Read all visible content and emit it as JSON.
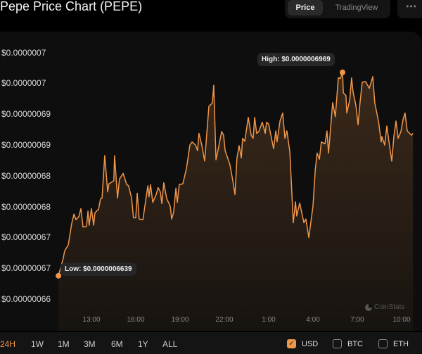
{
  "header": {
    "title": "Pepe Price Chart (PEPE)",
    "tabs": [
      {
        "label": "Price",
        "active": true
      },
      {
        "label": "TradingView",
        "active": false
      }
    ],
    "more_label": "•••"
  },
  "colors": {
    "line": "#f0964a",
    "background": "#0e0e0e",
    "accent": "#f0964a"
  },
  "chart_data": {
    "type": "area",
    "title": "",
    "xlabel": "",
    "ylabel": "",
    "ylim": [
      6.6e-07,
      7e-07
    ],
    "grid": false,
    "y_ticks": [
      {
        "value": 7e-07,
        "label": "$0.0000007"
      },
      {
        "value": 6.95e-07,
        "label": "$0.0000007"
      },
      {
        "value": 6.9e-07,
        "label": "$0.00000069"
      },
      {
        "value": 6.85e-07,
        "label": "$0.00000069"
      },
      {
        "value": 6.8e-07,
        "label": "$0.00000068"
      },
      {
        "value": 6.75e-07,
        "label": "$0.00000068"
      },
      {
        "value": 6.7e-07,
        "label": "$0.00000067"
      },
      {
        "value": 6.65e-07,
        "label": "$0.00000067"
      },
      {
        "value": 6.6e-07,
        "label": "$0.00000066"
      }
    ],
    "x_ticks": [
      "13:00",
      "16:00",
      "19:00",
      "22:00",
      "1:00",
      "4:00",
      "7:00",
      "10:00"
    ],
    "annotations": {
      "high": {
        "label": "High: $0.0000006969",
        "time": "06:00",
        "value": 6.969e-07
      },
      "low": {
        "label": "Low: $0.0000006639",
        "time": "10:46",
        "value": 6.639e-07
      }
    },
    "points": [
      [
        "10:46",
        6.639e-07
      ],
      [
        "11:06",
        6.668e-07
      ],
      [
        "11:11",
        6.679e-07
      ],
      [
        "11:26",
        6.689e-07
      ],
      [
        "11:40",
        6.724e-07
      ],
      [
        "11:49",
        6.739e-07
      ],
      [
        "11:57",
        6.73e-07
      ],
      [
        "12:09",
        6.735e-07
      ],
      [
        "12:17",
        6.748e-07
      ],
      [
        "12:26",
        6.718e-07
      ],
      [
        "12:40",
        6.719e-07
      ],
      [
        "12:46",
        6.744e-07
      ],
      [
        "12:51",
        6.721e-07
      ],
      [
        "13:00",
        6.748e-07
      ],
      [
        "13:09",
        6.721e-07
      ],
      [
        "13:14",
        6.741e-07
      ],
      [
        "13:29",
        6.747e-07
      ],
      [
        "13:37",
        6.764e-07
      ],
      [
        "13:43",
        6.765e-07
      ],
      [
        "13:54",
        6.834e-07
      ],
      [
        "14:06",
        6.775e-07
      ],
      [
        "14:11",
        6.788e-07
      ],
      [
        "14:31",
        6.793e-07
      ],
      [
        "14:34",
        6.834e-07
      ],
      [
        "14:46",
        6.765e-07
      ],
      [
        "14:54",
        6.796e-07
      ],
      [
        "15:09",
        6.805e-07
      ],
      [
        "15:23",
        6.787e-07
      ],
      [
        "15:31",
        6.785e-07
      ],
      [
        "15:43",
        6.765e-07
      ],
      [
        "15:51",
        6.733e-07
      ],
      [
        "16:00",
        6.733e-07
      ],
      [
        "16:06",
        6.773e-07
      ],
      [
        "16:14",
        6.731e-07
      ],
      [
        "16:29",
        6.73e-07
      ],
      [
        "16:49",
        6.785e-07
      ],
      [
        "16:54",
        6.767e-07
      ],
      [
        "17:00",
        6.787e-07
      ],
      [
        "17:09",
        6.758e-07
      ],
      [
        "17:23",
        6.771e-07
      ],
      [
        "17:31",
        6.782e-07
      ],
      [
        "17:40",
        6.775e-07
      ],
      [
        "17:46",
        6.756e-07
      ],
      [
        "17:54",
        6.79e-07
      ],
      [
        "18:06",
        6.764e-07
      ],
      [
        "18:20",
        6.752e-07
      ],
      [
        "18:26",
        6.731e-07
      ],
      [
        "18:34",
        6.742e-07
      ],
      [
        "18:43",
        6.781e-07
      ],
      [
        "18:49",
        6.758e-07
      ],
      [
        "18:57",
        6.787e-07
      ],
      [
        "19:11",
        6.788e-07
      ],
      [
        "19:26",
        6.813e-07
      ],
      [
        "19:40",
        6.851e-07
      ],
      [
        "19:49",
        6.856e-07
      ],
      [
        "20:03",
        6.851e-07
      ],
      [
        "20:11",
        6.842e-07
      ],
      [
        "20:17",
        6.87e-07
      ],
      [
        "20:29",
        6.85e-07
      ],
      [
        "20:40",
        6.825e-07
      ],
      [
        "20:46",
        6.856e-07
      ],
      [
        "20:57",
        6.914e-07
      ],
      [
        "21:11",
        6.919e-07
      ],
      [
        "21:17",
        6.948e-07
      ],
      [
        "21:26",
        6.827e-07
      ],
      [
        "21:34",
        6.842e-07
      ],
      [
        "21:49",
        6.873e-07
      ],
      [
        "21:57",
        6.867e-07
      ],
      [
        "22:03",
        6.842e-07
      ],
      [
        "22:23",
        6.819e-07
      ],
      [
        "22:34",
        6.794e-07
      ],
      [
        "22:43",
        6.771e-07
      ],
      [
        "22:51",
        6.83e-07
      ],
      [
        "23:00",
        6.85e-07
      ],
      [
        "23:09",
        6.83e-07
      ],
      [
        "23:14",
        6.862e-07
      ],
      [
        "23:23",
        6.857e-07
      ],
      [
        "23:37",
        6.896e-07
      ],
      [
        "23:49",
        6.867e-07
      ],
      [
        "23:57",
        6.862e-07
      ],
      [
        "00:03",
        6.896e-07
      ],
      [
        "00:11",
        6.87e-07
      ],
      [
        "00:20",
        6.873e-07
      ],
      [
        "00:34",
        6.888e-07
      ],
      [
        "00:46",
        6.87e-07
      ],
      [
        "00:51",
        6.888e-07
      ],
      [
        "01:00",
        6.885e-07
      ],
      [
        "01:09",
        6.867e-07
      ],
      [
        "01:20",
        6.845e-07
      ],
      [
        "01:29",
        6.874e-07
      ],
      [
        "01:34",
        6.856e-07
      ],
      [
        "01:46",
        6.89e-07
      ],
      [
        "01:57",
        6.903e-07
      ],
      [
        "02:06",
        6.862e-07
      ],
      [
        "02:14",
        6.874e-07
      ],
      [
        "02:26",
        6.84e-07
      ],
      [
        "02:40",
        6.725e-07
      ],
      [
        "02:49",
        6.759e-07
      ],
      [
        "02:54",
        6.736e-07
      ],
      [
        "03:06",
        6.757e-07
      ],
      [
        "03:23",
        6.725e-07
      ],
      [
        "03:31",
        6.731e-07
      ],
      [
        "03:43",
        6.701e-07
      ],
      [
        "04:00",
        6.752e-07
      ],
      [
        "04:09",
        6.81e-07
      ],
      [
        "04:17",
        6.838e-07
      ],
      [
        "04:26",
        6.828e-07
      ],
      [
        "04:34",
        6.856e-07
      ],
      [
        "04:49",
        6.853e-07
      ],
      [
        "04:57",
        6.874e-07
      ],
      [
        "05:03",
        6.838e-07
      ],
      [
        "05:20",
        6.92e-07
      ],
      [
        "05:31",
        6.897e-07
      ],
      [
        "05:43",
        6.96e-07
      ],
      [
        "05:51",
        6.959e-07
      ],
      [
        "06:00",
        6.969e-07
      ],
      [
        "06:03",
        6.936e-07
      ],
      [
        "06:14",
        6.931e-07
      ],
      [
        "06:17",
        6.903e-07
      ],
      [
        "06:29",
        6.924e-07
      ],
      [
        "06:37",
        6.96e-07
      ],
      [
        "06:43",
        6.937e-07
      ],
      [
        "06:54",
        6.916e-07
      ],
      [
        "07:03",
        6.884e-07
      ],
      [
        "07:11",
        6.92e-07
      ],
      [
        "07:20",
        6.953e-07
      ],
      [
        "07:34",
        6.954e-07
      ],
      [
        "07:49",
        6.943e-07
      ],
      [
        "08:03",
        6.962e-07
      ],
      [
        "08:11",
        6.919e-07
      ],
      [
        "08:26",
        6.89e-07
      ],
      [
        "08:37",
        6.856e-07
      ],
      [
        "08:40",
        6.865e-07
      ],
      [
        "08:51",
        6.851e-07
      ],
      [
        "09:00",
        6.882e-07
      ],
      [
        "09:09",
        6.856e-07
      ],
      [
        "09:20",
        6.825e-07
      ],
      [
        "09:29",
        6.867e-07
      ],
      [
        "09:37",
        6.89e-07
      ],
      [
        "09:46",
        6.862e-07
      ],
      [
        "09:57",
        6.873e-07
      ],
      [
        "10:06",
        6.893e-07
      ],
      [
        "10:14",
        6.903e-07
      ],
      [
        "10:23",
        6.874e-07
      ],
      [
        "10:40",
        6.867e-07
      ],
      [
        "10:46",
        6.87e-07
      ]
    ]
  },
  "watermark": "CoinStats",
  "ranges": [
    {
      "label": "24H",
      "active": true
    },
    {
      "label": "1W"
    },
    {
      "label": "1M"
    },
    {
      "label": "3M"
    },
    {
      "label": "6M"
    },
    {
      "label": "1Y"
    },
    {
      "label": "ALL"
    }
  ],
  "currencies": [
    {
      "label": "USD",
      "checked": true
    },
    {
      "label": "BTC",
      "checked": false
    },
    {
      "label": "ETH",
      "checked": false
    }
  ]
}
